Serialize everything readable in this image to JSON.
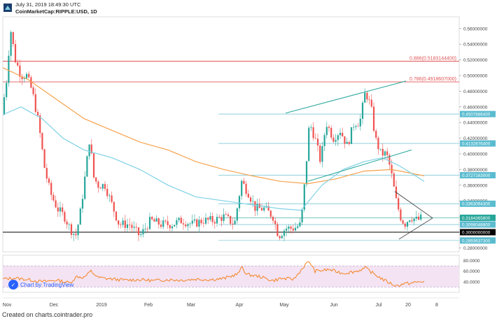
{
  "header": {
    "timestamp": "July 31, 2019 18:49:30 UTC",
    "symbol": "CoinMarketCap:RIPPLE:USD, 1D"
  },
  "footer": "Created on charts.cointrader.pro",
  "watermark": "Chart by TradingView",
  "colors": {
    "up": "#26a69a",
    "down": "#ef5350",
    "ema_long": "#f6a24e",
    "ema_short": "#7fd1e6",
    "fib": "#e05656",
    "channel": "#26a69a",
    "rsi": "#f58220",
    "rsi_band": "#f3e3f3"
  },
  "chart_data": {
    "type": "candlestick",
    "ylim": [
      0.275,
      0.575
    ],
    "y_ticks": [
      "0.56000000",
      "0.54000000",
      "0.52000000",
      "0.50000000",
      "0.48000000",
      "0.46000000",
      "0.44000000",
      "0.42000000",
      "0.40000000",
      "0.38000000",
      "0.36000000",
      "0.34000000",
      "0.32000000",
      "0.30000000",
      "0.28000000"
    ],
    "x_ticks": [
      "Nov",
      "Dec",
      "2019",
      "Feb",
      "Mar",
      "Apr",
      "May",
      "Jun",
      "Jul",
      "20",
      "8"
    ],
    "fib_levels": [
      {
        "label": "0.886(0.5183144400)",
        "value": 0.5183
      },
      {
        "label": "0.786(0.4918607000)",
        "value": 0.4919
      }
    ],
    "price_levels": [
      {
        "label": "0.4507886400",
        "value": 0.4508,
        "color": "#4fb3c8"
      },
      {
        "label": "0.4132876400",
        "value": 0.4133,
        "color": "#4fb3c8"
      },
      {
        "label": "0.3727163000",
        "value": 0.3727,
        "color": "#4fb3c8"
      },
      {
        "label": "0.3363094300",
        "value": 0.3363,
        "color": "#4fb3c8"
      },
      {
        "label": "0.3184365800",
        "value": 0.3184,
        "color": "#26a69a"
      },
      {
        "label": "0.3098048800",
        "value": 0.3098,
        "color": "#4fb3c8"
      },
      {
        "label": "0.3000000000",
        "value": 0.3,
        "color": "#000000"
      },
      {
        "label": "0.2893637300",
        "value": 0.2894,
        "color": "#4fb3c8"
      }
    ],
    "rsi": {
      "ylim": [
        20,
        90
      ],
      "y_ticks": [
        "80.0000",
        "60.0000",
        "40.0000"
      ],
      "band": [
        30,
        70
      ]
    }
  }
}
